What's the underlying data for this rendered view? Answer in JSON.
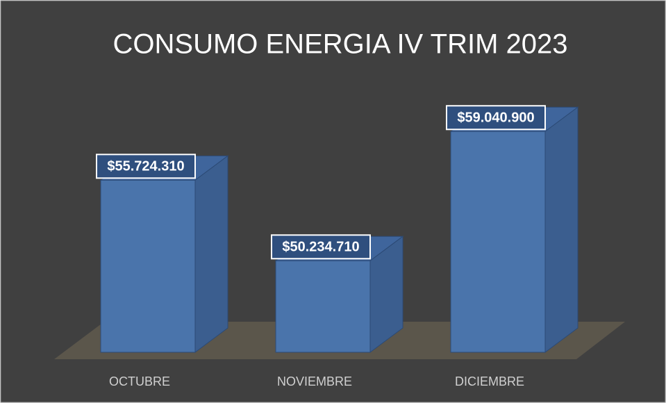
{
  "chart_data": {
    "type": "bar3d",
    "title": "CONSUMO ENERGIA IV TRIM 2023",
    "categories": [
      "OCTUBRE",
      "NOVIEMBRE",
      "DICIEMBRE"
    ],
    "values": [
      55724310,
      50234710,
      59040900
    ],
    "value_labels": [
      "$55.724.310",
      "$50.234.710",
      "$59.040.900"
    ],
    "color": "#4a74ab",
    "ylim": [
      44000000,
      60000000
    ]
  }
}
